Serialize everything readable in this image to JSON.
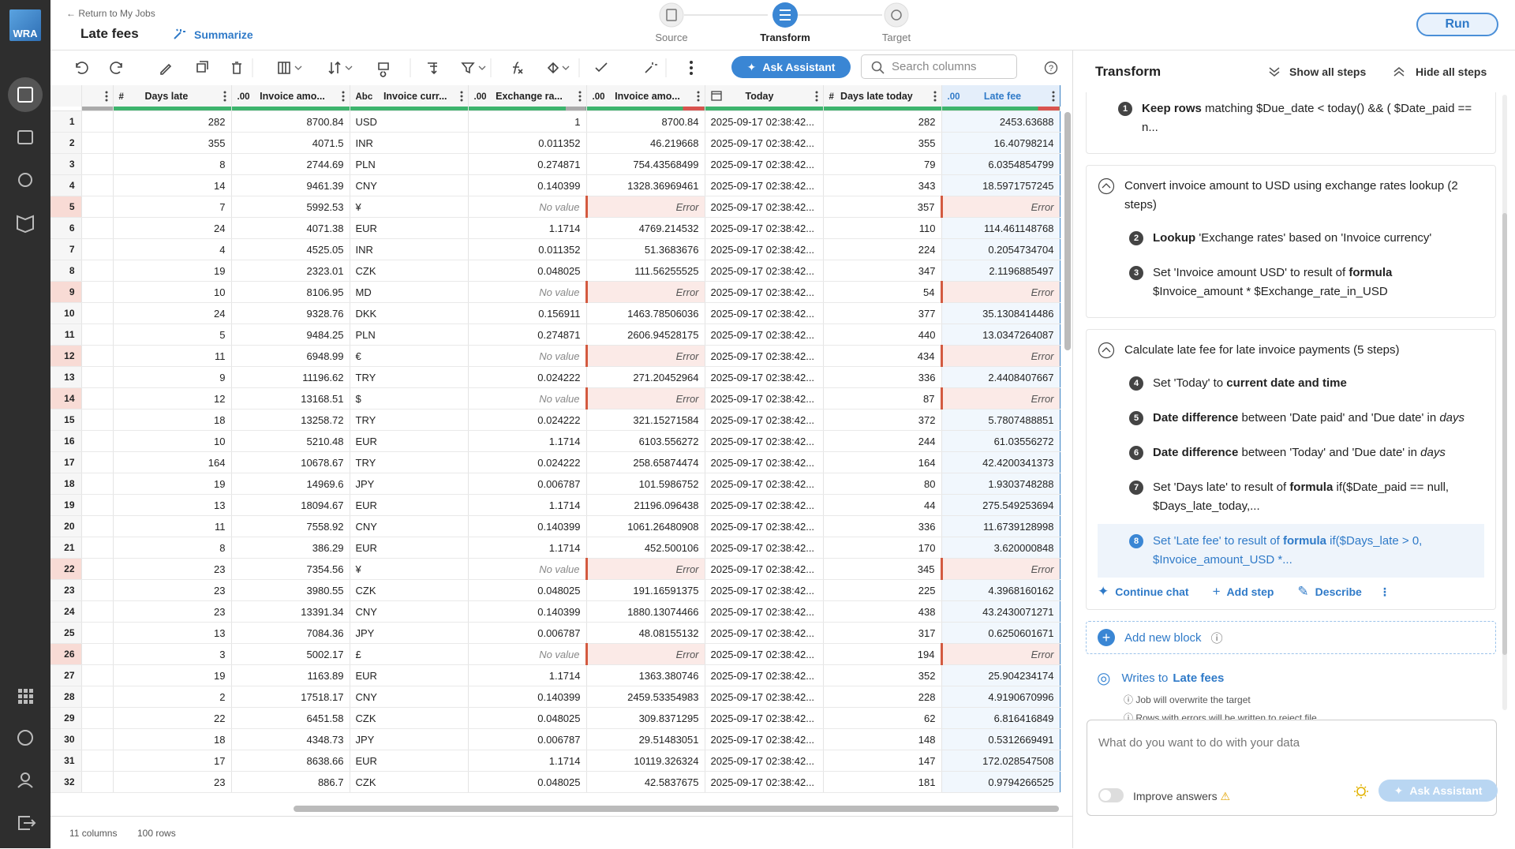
{
  "app": {
    "logo": "WRA"
  },
  "header": {
    "back": "Return to My Jobs",
    "title": "Late fees",
    "summarize": "Summarize",
    "steps": [
      "Source",
      "Transform",
      "Target"
    ],
    "run": "Run"
  },
  "toolbar": {
    "ask": "Ask Assistant",
    "search_placeholder": "Search columns"
  },
  "table": {
    "columns": [
      {
        "type": "#",
        "name": "Days late"
      },
      {
        "type": ".00",
        "name": "Invoice amo..."
      },
      {
        "type": "Abc",
        "name": "Invoice curr..."
      },
      {
        "type": ".00",
        "name": "Exchange ra..."
      },
      {
        "type": ".00",
        "name": "Invoice amo..."
      },
      {
        "name": "Today"
      },
      {
        "type": "#",
        "name": "Days late today"
      },
      {
        "type": ".00",
        "name": "Late fee",
        "selected": true
      }
    ],
    "rows": [
      [
        1,
        282,
        8700.84,
        "USD",
        1,
        8700.84,
        "2025-09-17 02:38:42...",
        282,
        2453.63688
      ],
      [
        2,
        355,
        4071.5,
        "INR",
        0.011352,
        46.219668,
        "2025-09-17 02:38:42...",
        355,
        16.40798214
      ],
      [
        3,
        8,
        2744.69,
        "PLN",
        0.274871,
        754.43568499,
        "2025-09-17 02:38:42...",
        79,
        6.0354854799
      ],
      [
        4,
        14,
        9461.39,
        "CNY",
        0.140399,
        1328.36969461,
        "2025-09-17 02:38:42...",
        343,
        18.5971757245
      ],
      [
        5,
        7,
        5992.53,
        "¥",
        "No value",
        "Error",
        "2025-09-17 02:38:42...",
        357,
        "Error"
      ],
      [
        6,
        24,
        4071.38,
        "EUR",
        1.1714,
        4769.214532,
        "2025-09-17 02:38:42...",
        110,
        114.461148768
      ],
      [
        7,
        4,
        4525.05,
        "INR",
        0.011352,
        51.3683676,
        "2025-09-17 02:38:42...",
        224,
        0.2054734704
      ],
      [
        8,
        19,
        2323.01,
        "CZK",
        0.048025,
        111.56255525,
        "2025-09-17 02:38:42...",
        347,
        2.1196885497
      ],
      [
        9,
        10,
        8106.95,
        "MD",
        "No value",
        "Error",
        "2025-09-17 02:38:42...",
        54,
        "Error"
      ],
      [
        10,
        24,
        9328.76,
        "DKK",
        0.156911,
        1463.78506036,
        "2025-09-17 02:38:42...",
        377,
        35.1308414486
      ],
      [
        11,
        5,
        9484.25,
        "PLN",
        0.274871,
        2606.94528175,
        "2025-09-17 02:38:42...",
        440,
        13.0347264087
      ],
      [
        12,
        11,
        6948.99,
        "€",
        "No value",
        "Error",
        "2025-09-17 02:38:42...",
        434,
        "Error"
      ],
      [
        13,
        9,
        11196.62,
        "TRY",
        0.024222,
        271.20452964,
        "2025-09-17 02:38:42...",
        336,
        2.4408407667
      ],
      [
        14,
        12,
        13168.51,
        "$",
        "No value",
        "Error",
        "2025-09-17 02:38:42...",
        87,
        "Error"
      ],
      [
        15,
        18,
        13258.72,
        "TRY",
        0.024222,
        321.15271584,
        "2025-09-17 02:38:42...",
        372,
        5.7807488851
      ],
      [
        16,
        10,
        5210.48,
        "EUR",
        1.1714,
        6103.556272,
        "2025-09-17 02:38:42...",
        244,
        61.03556272
      ],
      [
        17,
        164,
        10678.67,
        "TRY",
        0.024222,
        258.65874474,
        "2025-09-17 02:38:42...",
        164,
        42.4200341373
      ],
      [
        18,
        19,
        14969.6,
        "JPY",
        0.006787,
        101.5986752,
        "2025-09-17 02:38:42...",
        80,
        1.9303748288
      ],
      [
        19,
        13,
        18094.67,
        "EUR",
        1.1714,
        21196.096438,
        "2025-09-17 02:38:42...",
        44,
        275.549253694
      ],
      [
        20,
        11,
        7558.92,
        "CNY",
        0.140399,
        1061.26480908,
        "2025-09-17 02:38:42...",
        336,
        11.6739128998
      ],
      [
        21,
        8,
        386.29,
        "EUR",
        1.1714,
        452.500106,
        "2025-09-17 02:38:42...",
        170,
        3.620000848
      ],
      [
        22,
        23,
        7354.56,
        "¥",
        "No value",
        "Error",
        "2025-09-17 02:38:42...",
        345,
        "Error"
      ],
      [
        23,
        23,
        3980.55,
        "CZK",
        0.048025,
        191.16591375,
        "2025-09-17 02:38:42...",
        225,
        4.3968160162
      ],
      [
        24,
        23,
        13391.34,
        "CNY",
        0.140399,
        1880.13074466,
        "2025-09-17 02:38:42...",
        438,
        43.2430071271
      ],
      [
        25,
        13,
        7084.36,
        "JPY",
        0.006787,
        48.08155132,
        "2025-09-17 02:38:42...",
        317,
        0.6250601671
      ],
      [
        26,
        3,
        5002.17,
        "£",
        "No value",
        "Error",
        "2025-09-17 02:38:42...",
        194,
        "Error"
      ],
      [
        27,
        19,
        1163.89,
        "EUR",
        1.1714,
        1363.380746,
        "2025-09-17 02:38:42...",
        352,
        25.904234174
      ],
      [
        28,
        2,
        17518.17,
        "CNY",
        0.140399,
        2459.53354983,
        "2025-09-17 02:38:42...",
        228,
        4.9190670996
      ],
      [
        29,
        22,
        6451.58,
        "CZK",
        0.048025,
        309.8371295,
        "2025-09-17 02:38:42...",
        62,
        6.816416849
      ],
      [
        30,
        18,
        4348.73,
        "JPY",
        0.006787,
        29.51483051,
        "2025-09-17 02:38:42...",
        148,
        0.5312669491
      ],
      [
        31,
        17,
        8638.66,
        "EUR",
        1.1714,
        10119.326324,
        "2025-09-17 02:38:42...",
        147,
        172.028547508
      ],
      [
        32,
        23,
        886.7,
        "CZK",
        0.048025,
        42.5837675,
        "2025-09-17 02:38:42...",
        181,
        0.9794266525
      ]
    ]
  },
  "footer": {
    "columns": "11 columns",
    "rows": "100 rows"
  },
  "panel": {
    "title": "Transform",
    "show_all": "Show all steps",
    "hide_all": "Hide all steps",
    "blocks": [
      {
        "steps": [
          {
            "n": 1,
            "parts": [
              {
                "t": "Keep rows",
                "s": "b"
              },
              {
                "t": " matching $Due_date < today() && ( $Date_paid == n..."
              }
            ]
          }
        ]
      },
      {
        "title": "Convert invoice amount to USD using exchange rates lookup (2 steps)",
        "steps": [
          {
            "n": 2,
            "parts": [
              {
                "t": "Lookup",
                "s": "b"
              },
              {
                "t": " 'Exchange rates' based on 'Invoice currency'"
              }
            ]
          },
          {
            "n": 3,
            "parts": [
              {
                "t": "Set 'Invoice amount USD' to result of "
              },
              {
                "t": "formula",
                "s": "b"
              },
              {
                "t": " $Invoice_amount * $Exchange_rate_in_USD"
              }
            ]
          }
        ]
      },
      {
        "title": "Calculate late fee for late invoice payments (5 steps)",
        "steps": [
          {
            "n": 4,
            "parts": [
              {
                "t": "Set 'Today' to "
              },
              {
                "t": "current date and time",
                "s": "b"
              }
            ]
          },
          {
            "n": 5,
            "parts": [
              {
                "t": "Date difference",
                "s": "b"
              },
              {
                "t": " between 'Date paid' and 'Due date' in "
              },
              {
                "t": "days",
                "s": "i"
              }
            ]
          },
          {
            "n": 6,
            "parts": [
              {
                "t": "Date difference",
                "s": "b"
              },
              {
                "t": " between 'Today' and 'Due date' in "
              },
              {
                "t": "days",
                "s": "i"
              }
            ]
          },
          {
            "n": 7,
            "parts": [
              {
                "t": "Set 'Days late' to result of "
              },
              {
                "t": "formula",
                "s": "b"
              },
              {
                "t": " if($Date_paid == null, $Days_late_today,..."
              }
            ]
          },
          {
            "n": 8,
            "active": true,
            "parts": [
              {
                "t": "Set 'Late fee' to result of "
              },
              {
                "t": "formula",
                "s": "b"
              },
              {
                "t": " if($Days_late > 0, $Invoice_amount_USD *..."
              }
            ]
          }
        ],
        "actions": [
          "Continue chat",
          "Add step",
          "Describe"
        ]
      }
    ],
    "add_block": "Add new block",
    "writes": {
      "prefix": "Writes to",
      "target": "Late fees",
      "notes": [
        "Job will overwrite the target",
        "Rows with errors will be written to reject file"
      ]
    }
  },
  "chat": {
    "placeholder": "What do you want to do with your data",
    "improve": "Improve answers",
    "ask": "Ask Assistant"
  }
}
